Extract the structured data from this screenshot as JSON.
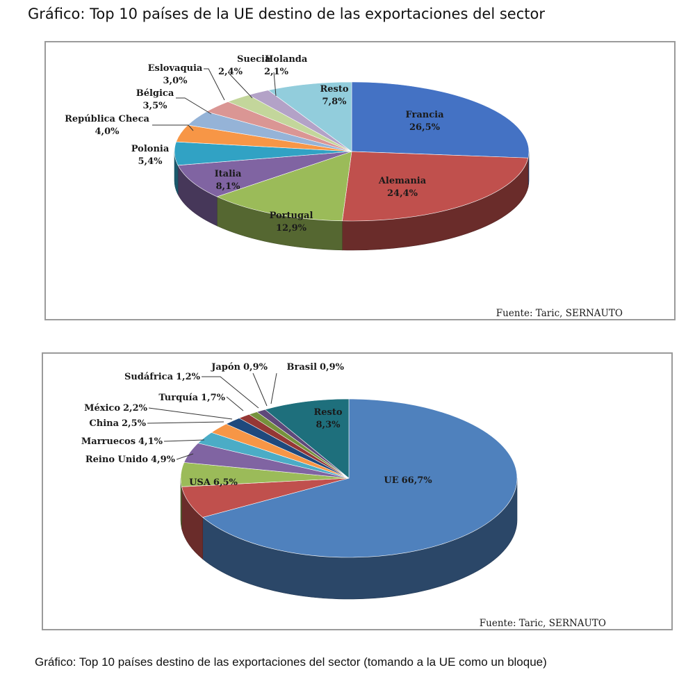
{
  "page": {
    "title": "Gráfico: Top 10 países de la UE destino de las exportaciones del sector",
    "caption": "Gráfico: Top 10 países destino de las exportaciones del sector (tomando a la UE como un bloque)"
  },
  "chart_data": [
    {
      "type": "pie",
      "style": "3d",
      "source": "Fuente:  Taric, SERNAUTO",
      "slices": [
        {
          "name": "Francia",
          "value": 26.5,
          "label": "26,5%",
          "color": "#4472c4"
        },
        {
          "name": "Alemania",
          "value": 24.4,
          "label": "24,4%",
          "color": "#c0504d"
        },
        {
          "name": "Portugal",
          "value": 12.9,
          "label": "12,9%",
          "color": "#9bbb59"
        },
        {
          "name": "Italia",
          "value": 8.1,
          "label": "8,1%",
          "color": "#8064a2"
        },
        {
          "name": "Polonia",
          "value": 5.4,
          "label": "5,4%",
          "color": "#31a2c4"
        },
        {
          "name": "República Checa",
          "value": 4.0,
          "label": "4,0%",
          "color": "#f79646"
        },
        {
          "name": "Bélgica",
          "value": 3.5,
          "label": "3,5%",
          "color": "#95b3d7"
        },
        {
          "name": "Eslovaquia",
          "value": 3.0,
          "label": "3,0%",
          "color": "#da9694"
        },
        {
          "name": "Suecia",
          "value": 2.4,
          "label": "2,4%",
          "color": "#c3d69b"
        },
        {
          "name": "Holanda",
          "value": 2.1,
          "label": "2,1%",
          "color": "#b3a2c7"
        },
        {
          "name": "Resto",
          "value": 7.8,
          "label": "7,8%",
          "color": "#92cddc"
        }
      ]
    },
    {
      "type": "pie",
      "style": "3d",
      "source": "Fuente:  Taric, SERNAUTO",
      "slices": [
        {
          "name": "UE",
          "value": 66.7,
          "label": "66,7%",
          "color": "#4f81bd"
        },
        {
          "name": "USA",
          "value": 6.5,
          "label": "6,5%",
          "color": "#c0504d"
        },
        {
          "name": "Reino Unido",
          "value": 4.9,
          "label": "4,9%",
          "color": "#9bbb59"
        },
        {
          "name": "Marruecos",
          "value": 4.1,
          "label": "4,1%",
          "color": "#8064a2"
        },
        {
          "name": "China",
          "value": 2.5,
          "label": "2,5%",
          "color": "#4bacc6"
        },
        {
          "name": "México",
          "value": 2.2,
          "label": "2,2%",
          "color": "#f79646"
        },
        {
          "name": "Turquía",
          "value": 1.7,
          "label": "1,7%",
          "color": "#1f497d"
        },
        {
          "name": "Sudáfrica",
          "value": 1.2,
          "label": "1,2%",
          "color": "#953735"
        },
        {
          "name": "Japón",
          "value": 0.9,
          "label": "0,9%",
          "color": "#76923c"
        },
        {
          "name": "Brasil",
          "value": 0.9,
          "label": "0,9%",
          "color": "#5f497a"
        },
        {
          "name": "Resto",
          "value": 8.3,
          "label": "8,3%",
          "color": "#1e6f7c"
        }
      ]
    }
  ]
}
